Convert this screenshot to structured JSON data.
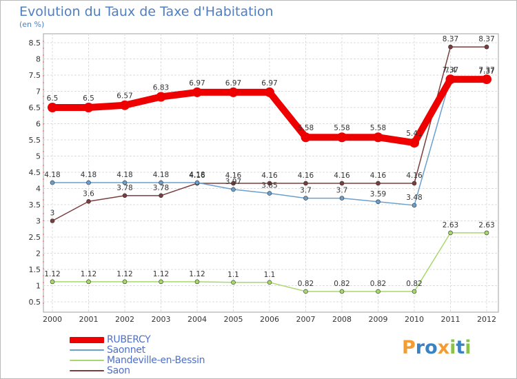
{
  "chart_title": "Evolution du Taux de Taxe d'Habitation",
  "chart_unit": "(en %)",
  "logo_text": "Proxiti",
  "logo_colors": [
    "#f39c33",
    "#3a82c4",
    "#3a82c4",
    "#f39c33",
    "#8bc34a",
    "#3a82c4",
    "#8bc34a"
  ],
  "chart_data": {
    "type": "line",
    "title": "Evolution du Taux de Taxe d'Habitation",
    "ylabel": "(en %)",
    "xlabel": "",
    "ylim": [
      0.5,
      8.5
    ],
    "yticks": [
      "0.5",
      "1",
      "1.5",
      "2",
      "2.5",
      "3",
      "3.5",
      "4",
      "4.5",
      "5",
      "5.5",
      "6",
      "6.5",
      "7",
      "7.5",
      "8",
      "8.5"
    ],
    "grid": true,
    "legend": "bottom-left",
    "categories": [
      "2000",
      "2001",
      "2002",
      "2003",
      "2004",
      "2005",
      "2006",
      "2007",
      "2008",
      "2009",
      "2010",
      "2011",
      "2012"
    ],
    "series": [
      {
        "name": "RUBERCY",
        "color": "#ee0000",
        "values": [
          6.5,
          6.5,
          6.57,
          6.83,
          6.97,
          6.97,
          6.97,
          5.58,
          5.58,
          5.58,
          5.41,
          7.37,
          7.37
        ],
        "labels": [
          "6.5",
          "6.5",
          "6.57",
          "6.83",
          "6.97",
          "6.97",
          "6.97",
          "5.58",
          "5.58",
          "5.58",
          "5.41",
          "7.37",
          "7.37"
        ]
      },
      {
        "name": "Saonnet",
        "color": "#6a9fcd",
        "values": [
          4.18,
          4.18,
          4.18,
          4.18,
          4.18,
          3.97,
          3.85,
          3.7,
          3.7,
          3.59,
          3.48,
          7.4,
          7.37
        ],
        "labels": [
          "4.18",
          "4.18",
          "4.18",
          "4.18",
          "4.18",
          "3.97",
          "3.85",
          "3.7",
          "3.7",
          "3.59",
          "3.48",
          "7.4",
          "7.37"
        ]
      },
      {
        "name": "Mandeville-en-Bessin",
        "color": "#a6d96a",
        "values": [
          1.12,
          1.12,
          1.12,
          1.12,
          1.12,
          1.1,
          1.1,
          0.82,
          0.82,
          0.82,
          0.82,
          2.63,
          2.63
        ],
        "labels": [
          "1.12",
          "1.12",
          "1.12",
          "1.12",
          "1.12",
          "1.1",
          "1.1",
          "0.82",
          "0.82",
          "0.82",
          "0.82",
          "2.63",
          "2.63"
        ]
      },
      {
        "name": "Saon",
        "color": "#7a3d3d",
        "values": [
          3.0,
          3.6,
          3.78,
          3.78,
          4.16,
          4.16,
          4.16,
          4.16,
          4.16,
          4.16,
          4.16,
          8.37,
          8.37
        ],
        "labels": [
          "3",
          "3.6",
          "3.78",
          "3.78",
          "4.16",
          "4.16",
          "4.16",
          "4.16",
          "4.16",
          "4.16",
          "4.16",
          "8.37",
          "8.37"
        ]
      }
    ]
  }
}
